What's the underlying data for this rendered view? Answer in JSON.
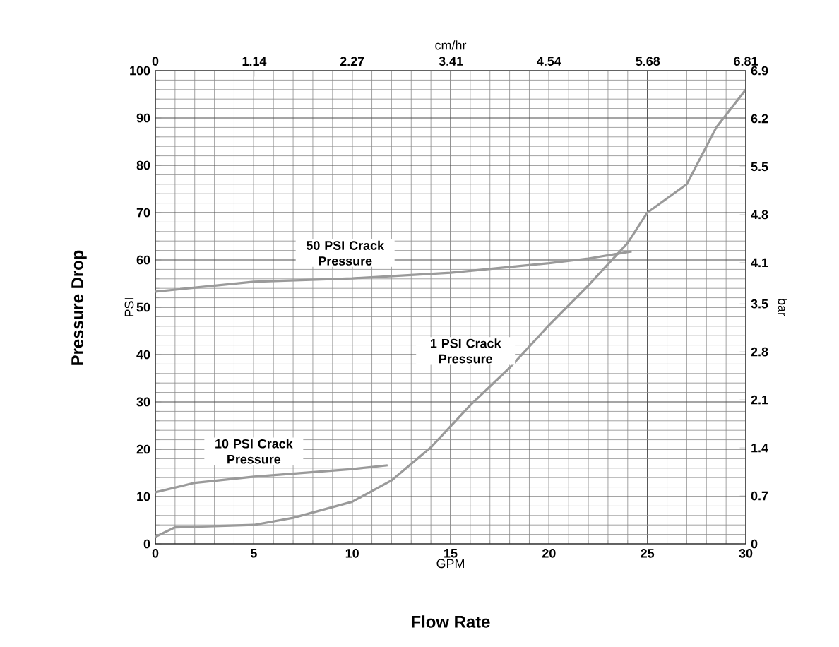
{
  "chart_data": {
    "type": "line",
    "xlabel": "GPM",
    "ylabel": "PSI",
    "x2label": "cm/hr",
    "y2label": "bar",
    "annotations": [
      "Flow Rate",
      "Pressure Drop"
    ],
    "series": [
      {
        "name": "50 PSI Crack Pressure",
        "color": "#9a9a9a",
        "x": [
          0,
          5,
          10,
          15,
          20,
          22,
          24.2
        ],
        "values": [
          53.3,
          55.4,
          56.1,
          57.3,
          59.3,
          60.3,
          61.8
        ]
      },
      {
        "name": "10 PSI Crack Pressure",
        "color": "#9a9a9a",
        "x": [
          0,
          2,
          5,
          10,
          11.8
        ],
        "values": [
          10.9,
          12.9,
          14.2,
          15.8,
          16.6
        ]
      },
      {
        "name": "1 PSI Crack Pressure",
        "color": "#9a9a9a",
        "x": [
          0,
          1,
          5,
          7,
          10,
          12,
          14,
          16,
          18,
          20,
          22,
          24,
          25,
          27,
          28.5,
          30
        ],
        "values": [
          1.5,
          3.5,
          4.0,
          5.5,
          8.9,
          13.4,
          20.4,
          29.3,
          37.2,
          46.2,
          54.6,
          63.6,
          70,
          76,
          88,
          96
        ]
      }
    ],
    "xlim": [
      0,
      30
    ],
    "xticks": [
      0,
      5,
      10,
      15,
      20,
      25,
      30
    ],
    "ylim": [
      0,
      100
    ],
    "yticks": [
      0,
      10,
      20,
      30,
      40,
      50,
      60,
      70,
      80,
      90,
      100
    ],
    "x2lim": [
      0,
      6.81
    ],
    "x2ticks": [
      0,
      1.14,
      2.27,
      3.41,
      4.54,
      5.68,
      6.81
    ],
    "y2lim": [
      0,
      6.9
    ],
    "y2ticks": [
      0,
      0.7,
      1.4,
      2.1,
      2.8,
      3.5,
      4.1,
      4.8,
      5.5,
      6.2,
      6.9
    ],
    "grid": true,
    "line_style": "solid",
    "marker": "none"
  }
}
